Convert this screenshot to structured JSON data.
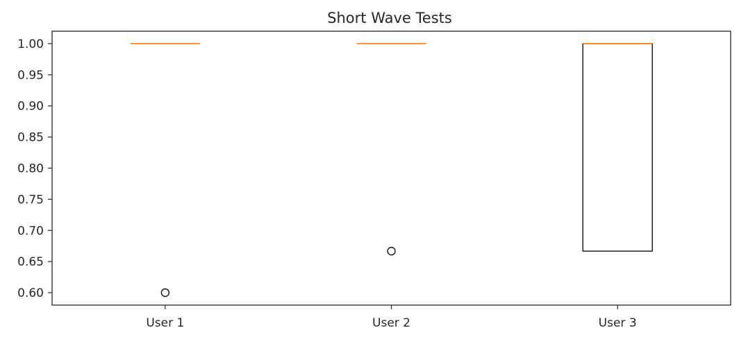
{
  "chart_data": {
    "type": "box",
    "title": "Short Wave Tests",
    "xlabel": "",
    "ylabel": "",
    "categories": [
      "User 1",
      "User 2",
      "User 3"
    ],
    "boxes": [
      {
        "name": "User 1",
        "q1": 1.0,
        "median": 1.0,
        "q3": 1.0,
        "whisker_low": 1.0,
        "whisker_high": 1.0,
        "outliers": [
          0.6
        ]
      },
      {
        "name": "User 2",
        "q1": 1.0,
        "median": 1.0,
        "q3": 1.0,
        "whisker_low": 1.0,
        "whisker_high": 1.0,
        "outliers": [
          0.6667
        ]
      },
      {
        "name": "User 3",
        "q1": 0.6667,
        "median": 1.0,
        "q3": 1.0,
        "whisker_low": 0.6667,
        "whisker_high": 1.0,
        "outliers": []
      }
    ],
    "yticks": [
      "0.60",
      "0.65",
      "0.70",
      "0.75",
      "0.80",
      "0.85",
      "0.90",
      "0.95",
      "1.00"
    ],
    "ylim": [
      0.58,
      1.02
    ],
    "grid": false,
    "colors": {
      "box": "#000000",
      "median": "#ff7f0e",
      "axis": "#262626"
    }
  }
}
